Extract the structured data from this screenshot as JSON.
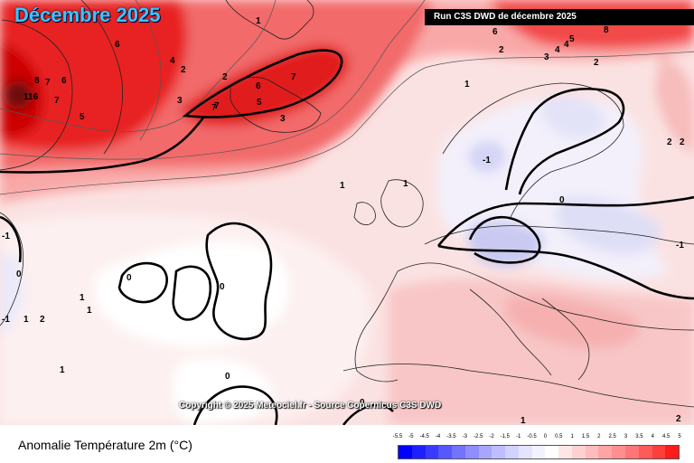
{
  "title": "Décembre 2025",
  "run_label": "Run C3S DWD de décembre 2025",
  "copyright": "Copyright © 2025 Meteociel.fr - Source Copernicus C3S DWD",
  "footer_label": "Anomalie Température 2m (°C)",
  "legend": {
    "ticks": [
      "-5.5",
      "-5",
      "-4.5",
      "-4",
      "-3.5",
      "-3",
      "-2.5",
      "-2",
      "-1.5",
      "-1",
      "-0.5",
      "0",
      "0.5",
      "1",
      "1.5",
      "2",
      "2.5",
      "3",
      "3.5",
      "4",
      "4.5",
      "5"
    ],
    "colors": [
      "#0000ff",
      "#1e1eff",
      "#3a3aff",
      "#5757ff",
      "#7373ff",
      "#8e8eff",
      "#a6a6ff",
      "#bdbdff",
      "#d2d2ff",
      "#e4e4ff",
      "#f2f2ff",
      "#ffffff",
      "#ffe6e6",
      "#ffd0d0",
      "#ffbcbc",
      "#ffa5a5",
      "#ff8e8e",
      "#ff7676",
      "#ff5a5a",
      "#ff3d3d",
      "#ff1c1c"
    ]
  },
  "contour_labels": [
    "6",
    "7",
    "7",
    "6",
    "4",
    "2",
    "3",
    "5",
    "116",
    "8",
    "7",
    "1",
    "7",
    "6",
    "5",
    "2",
    "3",
    "7",
    "4",
    "2",
    "2",
    "6",
    "8",
    "3",
    "4",
    "5",
    "1",
    "-1",
    "0",
    "2",
    "2",
    "-1",
    "1",
    "1",
    "0",
    "0",
    "0",
    "0",
    "1",
    "1",
    "1",
    "2",
    "1",
    "0",
    "1",
    "2",
    "-1",
    "-1"
  ]
}
